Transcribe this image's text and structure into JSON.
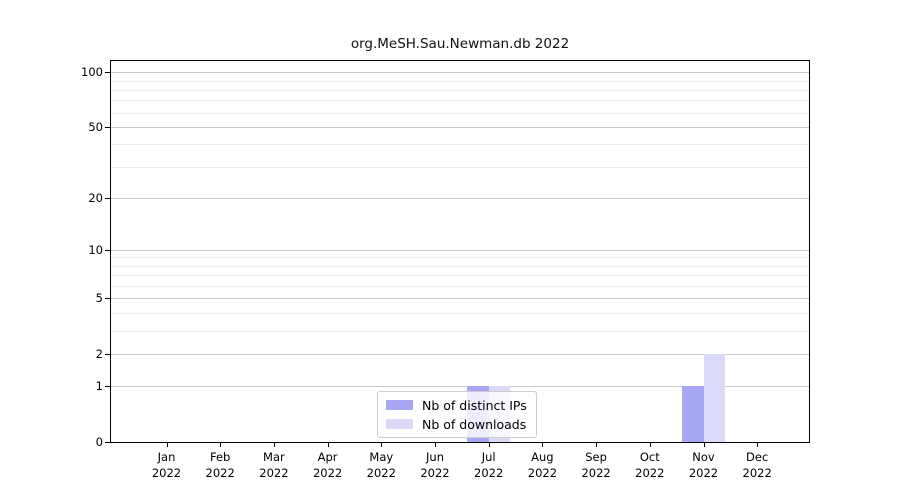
{
  "chart_data": {
    "type": "bar",
    "title": "org.MeSH.Sau.Newman.db 2022",
    "categories": [
      "Jan 2022",
      "Feb 2022",
      "Mar 2022",
      "Apr 2022",
      "May 2022",
      "Jun 2022",
      "Jul 2022",
      "Aug 2022",
      "Sep 2022",
      "Oct 2022",
      "Nov 2022",
      "Dec 2022"
    ],
    "series": [
      {
        "name": "Nb of distinct IPs",
        "color": "#a6a6f2",
        "values": [
          0,
          0,
          0,
          0,
          0,
          0,
          1,
          0,
          0,
          0,
          1,
          0
        ]
      },
      {
        "name": "Nb of downloads",
        "color": "#dadaf8",
        "values": [
          0,
          0,
          0,
          0,
          0,
          0,
          1,
          0,
          0,
          0,
          2,
          0
        ]
      }
    ],
    "xlabel": "",
    "ylabel": "",
    "yscale": "log1p",
    "ylim": [
      0,
      115
    ],
    "y_major_ticks": [
      0,
      1,
      2,
      5,
      10,
      20,
      50,
      100
    ],
    "y_minor_ticks": [
      3,
      4,
      6,
      7,
      8,
      9,
      30,
      40,
      60,
      70,
      80,
      90
    ],
    "grid": "on",
    "legend_position": "lower center"
  },
  "colors": {
    "axis": "#000000",
    "grid_major": "#c9c9c9",
    "grid_minor": "#ececec",
    "legend_border": "#cccccc",
    "text": "#000000"
  }
}
